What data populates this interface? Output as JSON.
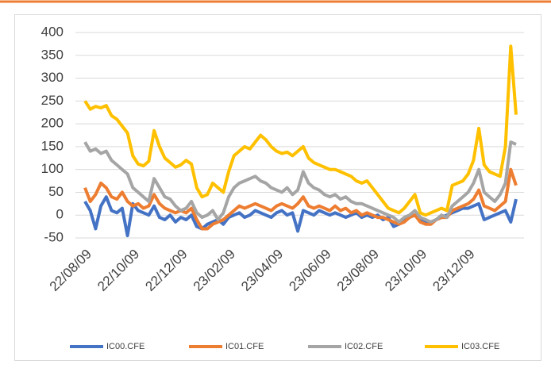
{
  "chart_data": {
    "type": "line",
    "categories": [
      "22/08/09",
      null,
      null,
      null,
      null,
      null,
      null,
      null,
      null,
      "22/10/09",
      null,
      null,
      null,
      null,
      null,
      null,
      null,
      null,
      "22/12/09",
      null,
      null,
      null,
      null,
      null,
      null,
      null,
      null,
      "23/02/09",
      null,
      null,
      null,
      null,
      null,
      null,
      null,
      null,
      "23/04/09",
      null,
      null,
      null,
      null,
      null,
      null,
      null,
      null,
      "23/06/09",
      null,
      null,
      null,
      null,
      null,
      null,
      null,
      null,
      "23/08/09",
      null,
      null,
      null,
      null,
      null,
      null,
      null,
      null,
      "23/10/09",
      null,
      null,
      null,
      null,
      null,
      null,
      null,
      null,
      "23/12/09",
      null,
      null,
      null,
      null,
      null,
      null,
      null,
      null,
      null
    ],
    "series": [
      {
        "name": "IC00.CFE",
        "color": "#4472c4",
        "values": [
          30,
          10,
          -30,
          20,
          40,
          10,
          5,
          15,
          -45,
          25,
          10,
          5,
          0,
          20,
          -5,
          -10,
          0,
          -15,
          -5,
          -10,
          0,
          -25,
          -30,
          -20,
          -15,
          -10,
          -20,
          -5,
          0,
          5,
          -5,
          0,
          10,
          5,
          0,
          -5,
          5,
          10,
          0,
          5,
          -35,
          10,
          5,
          0,
          10,
          5,
          0,
          5,
          0,
          -5,
          0,
          5,
          -5,
          0,
          -5,
          0,
          -10,
          -5,
          -25,
          -20,
          -10,
          -5,
          0,
          -10,
          -15,
          -15,
          -10,
          -5,
          0,
          5,
          10,
          15,
          15,
          20,
          25,
          -10,
          -5,
          0,
          5,
          10,
          -15,
          35
        ]
      },
      {
        "name": "IC01.CFE",
        "color": "#ed7d31",
        "values": [
          60,
          30,
          45,
          70,
          60,
          40,
          35,
          50,
          30,
          20,
          25,
          15,
          20,
          45,
          25,
          15,
          10,
          5,
          10,
          5,
          15,
          -10,
          -30,
          -30,
          -20,
          -15,
          -10,
          0,
          10,
          20,
          15,
          20,
          25,
          20,
          15,
          10,
          20,
          25,
          20,
          15,
          25,
          40,
          20,
          15,
          20,
          15,
          10,
          20,
          10,
          15,
          5,
          10,
          0,
          5,
          0,
          -5,
          -5,
          -10,
          -15,
          -20,
          -15,
          -5,
          0,
          -15,
          -20,
          -20,
          -10,
          -5,
          -5,
          10,
          15,
          20,
          25,
          35,
          55,
          20,
          15,
          10,
          20,
          30,
          100,
          65
        ]
      },
      {
        "name": "IC02.CFE",
        "color": "#a5a5a5",
        "values": [
          160,
          140,
          145,
          135,
          140,
          120,
          110,
          100,
          90,
          60,
          50,
          40,
          30,
          80,
          60,
          40,
          35,
          20,
          10,
          15,
          30,
          5,
          -5,
          0,
          10,
          -10,
          5,
          40,
          60,
          70,
          75,
          80,
          85,
          75,
          70,
          60,
          55,
          50,
          60,
          45,
          55,
          95,
          70,
          60,
          55,
          45,
          40,
          45,
          35,
          40,
          30,
          25,
          25,
          20,
          15,
          10,
          5,
          0,
          -5,
          -15,
          -5,
          0,
          10,
          -5,
          -10,
          -15,
          -10,
          0,
          -5,
          20,
          30,
          40,
          50,
          70,
          100,
          50,
          40,
          30,
          45,
          70,
          160,
          155
        ]
      },
      {
        "name": "IC03.CFE",
        "color": "#ffc000",
        "values": [
          250,
          232,
          238,
          235,
          240,
          218,
          210,
          195,
          180,
          130,
          112,
          108,
          118,
          185,
          150,
          125,
          115,
          105,
          110,
          120,
          112,
          60,
          40,
          45,
          70,
          60,
          50,
          95,
          130,
          140,
          150,
          145,
          160,
          175,
          165,
          150,
          140,
          135,
          138,
          130,
          140,
          150,
          125,
          115,
          110,
          105,
          100,
          100,
          95,
          90,
          85,
          75,
          70,
          75,
          60,
          45,
          30,
          15,
          10,
          5,
          15,
          30,
          45,
          5,
          0,
          5,
          10,
          15,
          10,
          65,
          70,
          75,
          90,
          120,
          190,
          110,
          95,
          90,
          85,
          150,
          370,
          220
        ]
      }
    ],
    "ylim": [
      -50,
      400
    ],
    "yticks": [
      -50,
      0,
      50,
      100,
      150,
      200,
      250,
      300,
      350,
      400
    ],
    "grid": true
  }
}
